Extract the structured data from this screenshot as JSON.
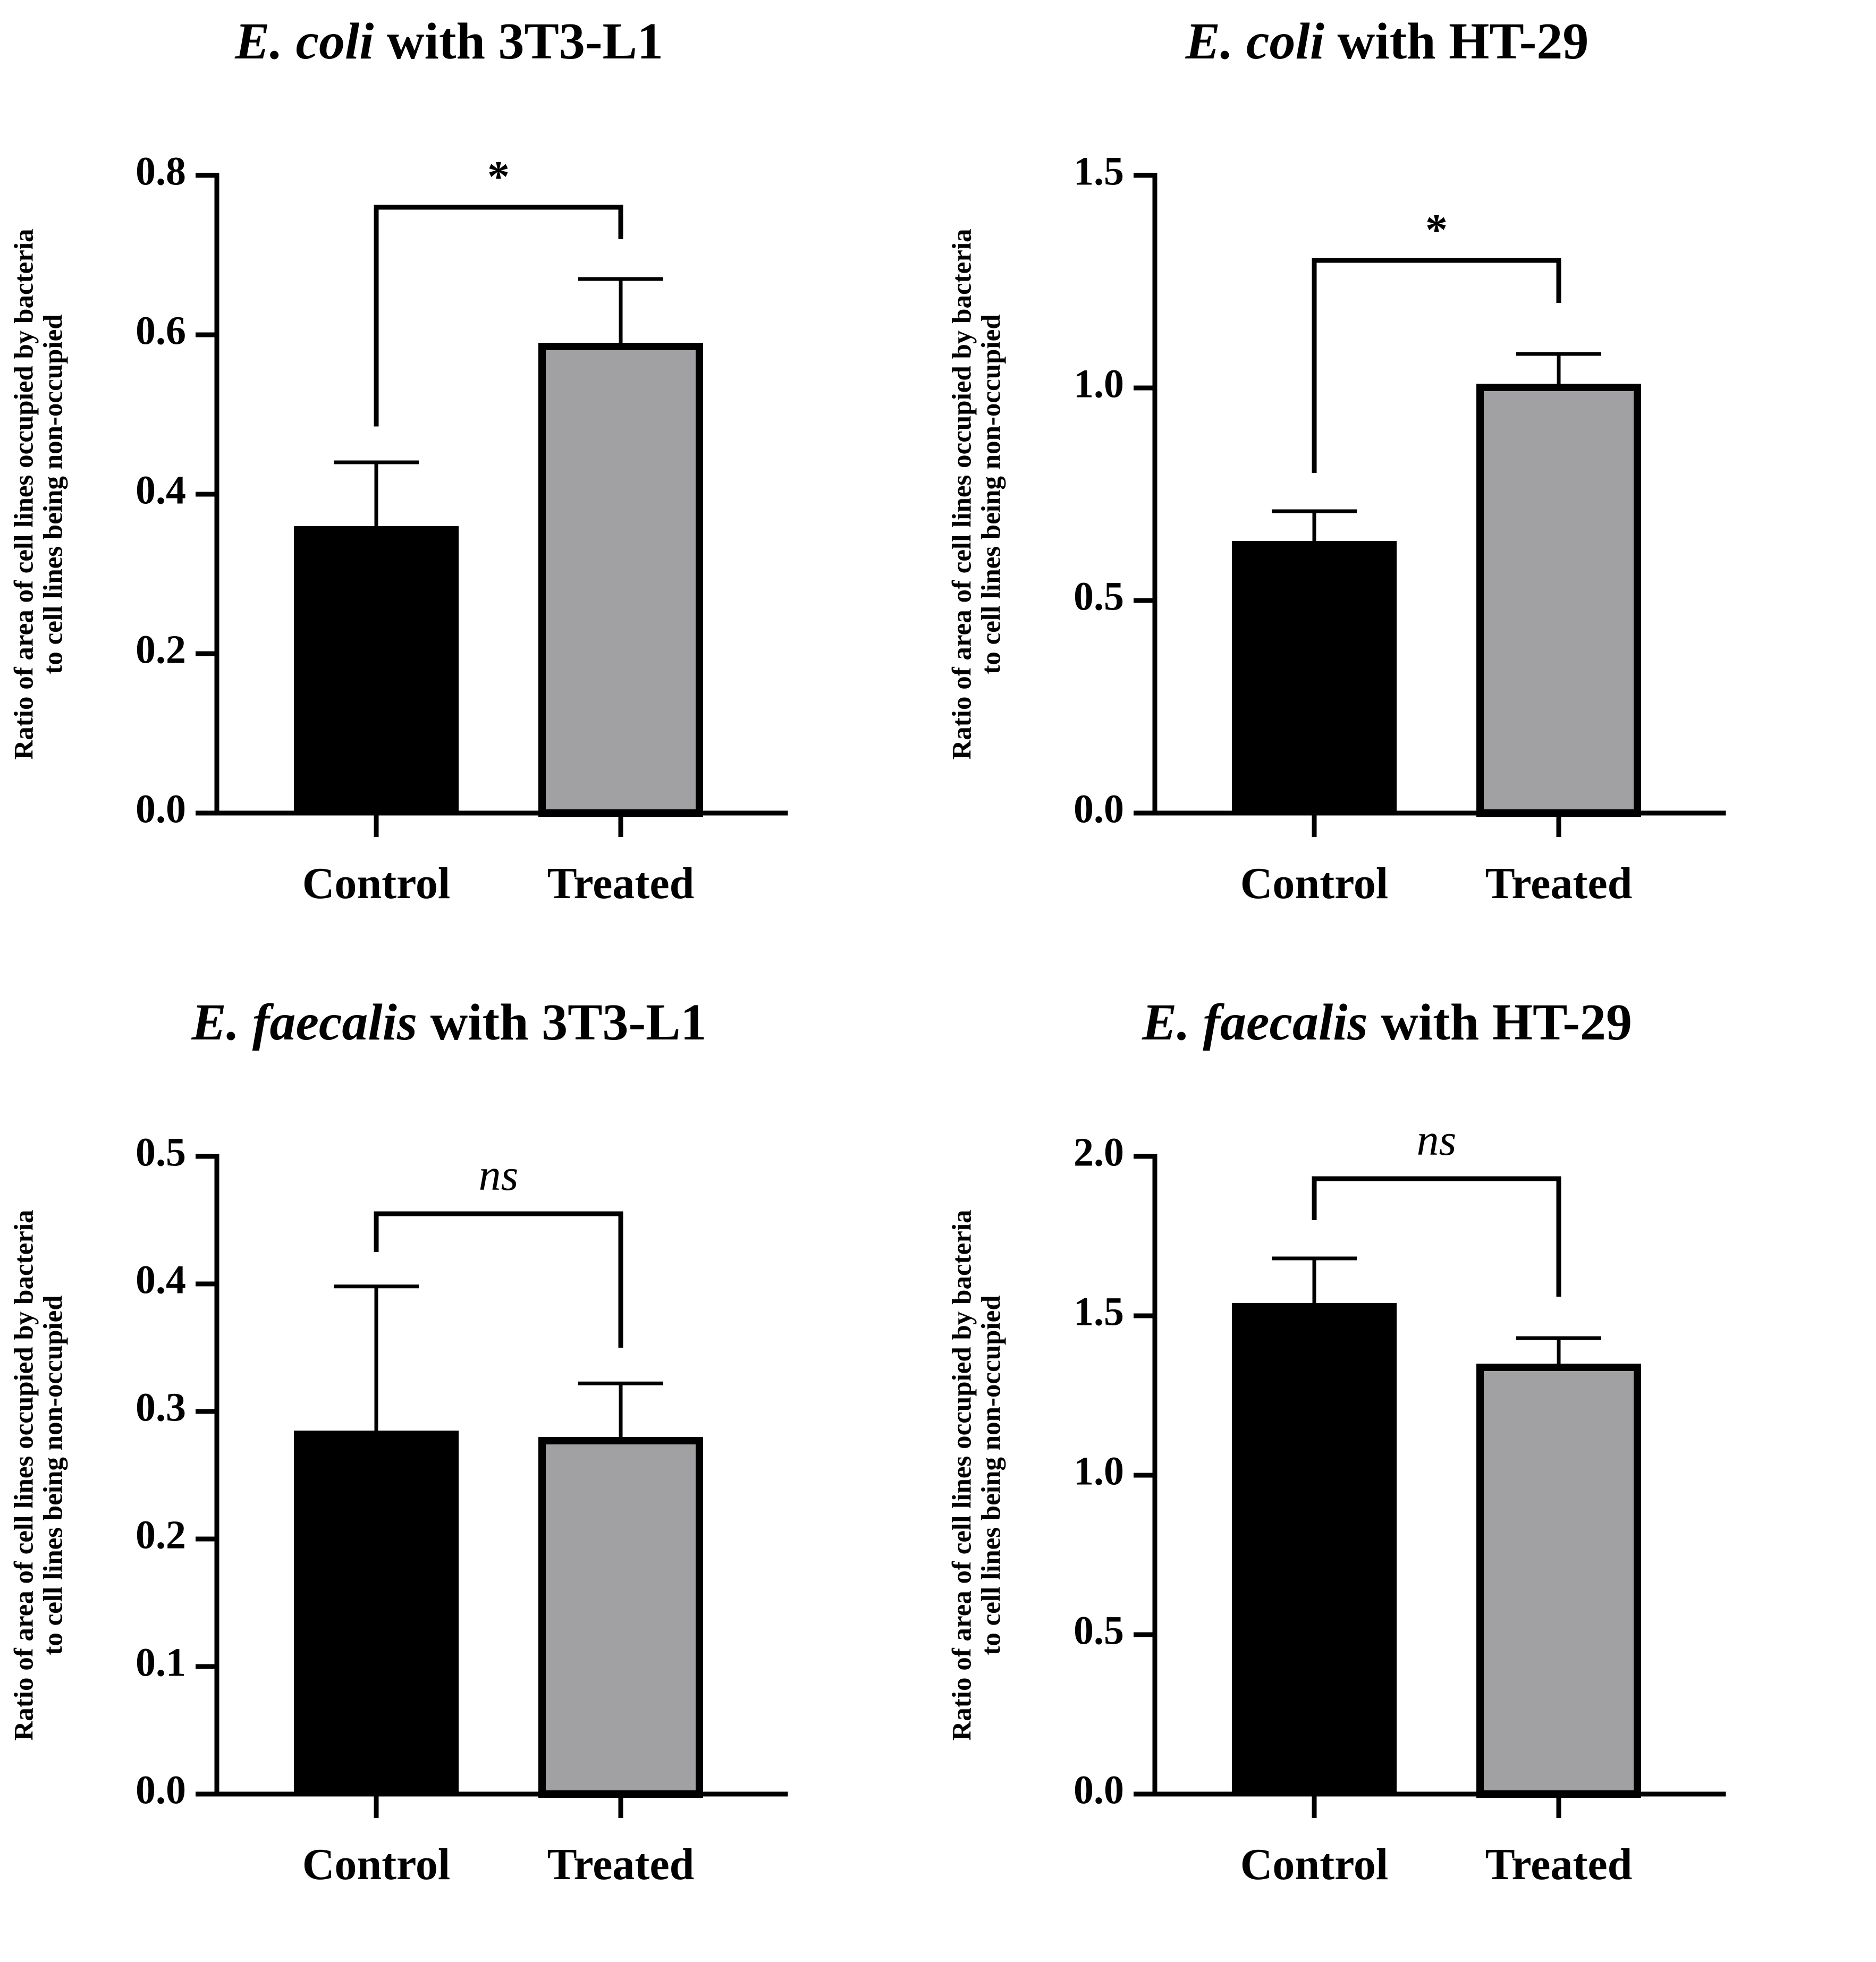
{
  "chart_data": [
    {
      "type": "bar",
      "title_italic": "E. coli",
      "title_rest": " with 3T3-L1",
      "ylabel_line1": "Ratio of area of cell lines occupied by bacteria",
      "ylabel_line2": "to cell lines being non-occupied",
      "categories": [
        "Control",
        "Treated"
      ],
      "values": [
        0.36,
        0.59
      ],
      "errors": [
        0.08,
        0.08
      ],
      "ylim": [
        0,
        0.8
      ],
      "yticks": [
        0.0,
        0.2,
        0.4,
        0.6,
        0.8
      ],
      "ytick_labels": [
        "0.0",
        "0.2",
        "0.4",
        "0.6",
        "0.8"
      ],
      "colors": [
        "#000000",
        "#a1a1a4"
      ],
      "significance": "*",
      "significance_italic": false,
      "bracket_y": 0.76,
      "bracket_left_end": 0.485,
      "bracket_right_end": 0.72
    },
    {
      "type": "bar",
      "title_italic": "E. coli",
      "title_rest": " with HT-29",
      "ylabel_line1": "Ratio of area of cell lines occupied by bacteria",
      "ylabel_line2": "to cell lines being non-occupied",
      "categories": [
        "Control",
        "Treated"
      ],
      "values": [
        0.64,
        1.01
      ],
      "errors": [
        0.07,
        0.07
      ],
      "ylim": [
        0,
        1.5
      ],
      "yticks": [
        0.0,
        0.5,
        1.0,
        1.5
      ],
      "ytick_labels": [
        "0.0",
        "0.5",
        "1.0",
        "1.5"
      ],
      "colors": [
        "#000000",
        "#a1a1a4"
      ],
      "significance": "*",
      "significance_italic": false,
      "bracket_y": 1.3,
      "bracket_left_end": 0.8,
      "bracket_right_end": 1.2
    },
    {
      "type": "bar",
      "title_italic": "E. faecalis",
      "title_rest": " with 3T3-L1",
      "ylabel_line1": "Ratio of area of cell lines occupied by bacteria",
      "ylabel_line2": "to cell lines being non-occupied",
      "categories": [
        "Control",
        "Treated"
      ],
      "values": [
        0.285,
        0.28
      ],
      "errors": [
        0.113,
        0.042
      ],
      "ylim": [
        0,
        0.5
      ],
      "yticks": [
        0.0,
        0.1,
        0.2,
        0.3,
        0.4,
        0.5
      ],
      "ytick_labels": [
        "0.0",
        "0.1",
        "0.2",
        "0.3",
        "0.4",
        "0.5"
      ],
      "colors": [
        "#000000",
        "#a1a1a4"
      ],
      "significance": "ns",
      "significance_italic": true,
      "bracket_y": 0.455,
      "bracket_left_end": 0.425,
      "bracket_right_end": 0.35
    },
    {
      "type": "bar",
      "title_italic": "E. faecalis",
      "title_rest": " with HT-29",
      "ylabel_line1": "Ratio of area of cell lines occupied by bacteria",
      "ylabel_line2": "to cell lines being non-occupied",
      "categories": [
        "Control",
        "Treated"
      ],
      "values": [
        1.54,
        1.35
      ],
      "errors": [
        0.14,
        0.08
      ],
      "ylim": [
        0,
        2.0
      ],
      "yticks": [
        0.0,
        0.5,
        1.0,
        1.5,
        2.0
      ],
      "ytick_labels": [
        "0.0",
        "0.5",
        "1.0",
        "1.5",
        "2.0"
      ],
      "colors": [
        "#000000",
        "#a1a1a4"
      ],
      "significance": "ns",
      "significance_italic": true,
      "bracket_y": 1.93,
      "bracket_left_end": 1.8,
      "bracket_right_end": 1.56
    }
  ]
}
